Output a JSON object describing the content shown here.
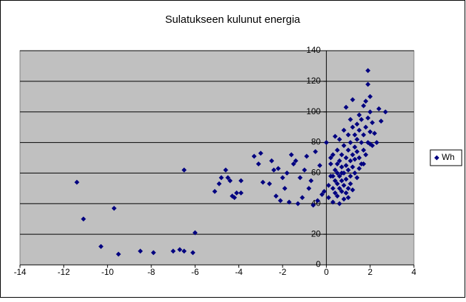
{
  "chart_data": {
    "type": "scatter",
    "title": "Sulatukseen kulunut energia",
    "series": [
      {
        "name": "Wh",
        "color": "#000080",
        "x": [
          -11.4,
          -11.1,
          -9.7,
          -10.3,
          -9.5,
          -8.5,
          -7.9,
          -7,
          -6.7,
          -6.5,
          -6.1,
          -6,
          -6.5,
          -5.1,
          -4.9,
          -4.8,
          -4.6,
          -4.5,
          -4.4,
          -4.3,
          -4.2,
          -4.1,
          -3.9,
          -3.9,
          -3.3,
          -3.1,
          -3,
          -2.9,
          -2.6,
          -2.5,
          -2.4,
          -2.3,
          -2.2,
          -2.1,
          -2,
          -1.9,
          -1.8,
          -1.7,
          -1.6,
          -1.5,
          -1.4,
          -1.3,
          -1.2,
          -1.1,
          -1,
          -0.9,
          -0.8,
          -0.7,
          -0.6,
          -0.5,
          -0.4,
          -0.3,
          -0.2,
          -0.1,
          0,
          0.1,
          0.1,
          0.2,
          0.2,
          0.3,
          0.3,
          0.3,
          0.4,
          0.4,
          0.4,
          0.5,
          0.5,
          0.5,
          0.5,
          0.6,
          0.6,
          0.6,
          0.6,
          0.7,
          0.7,
          0.7,
          0.7,
          0.8,
          0.8,
          0.8,
          0.8,
          0.9,
          0.9,
          0.9,
          0.9,
          1.0,
          1.0,
          1.0,
          1.0,
          1.1,
          1.1,
          1.1,
          1.1,
          1.2,
          1.2,
          1.2,
          1.2,
          1.3,
          1.3,
          1.3,
          1.4,
          1.4,
          1.4,
          1.5,
          1.5,
          1.5,
          1.6,
          1.6,
          1.6,
          1.7,
          1.7,
          1.7,
          1.8,
          1.8,
          1.8,
          1.9,
          1.9,
          1.9,
          1.9,
          2.0,
          2.0,
          2.0,
          2.0,
          2.1,
          2.2,
          2.3,
          2.4,
          2.5,
          2.7,
          1.0,
          0.6,
          0.8,
          1.3,
          1.5,
          0.2,
          0.4,
          1.7,
          2.1,
          0.9,
          1.1,
          0.3,
          0.7,
          1.2,
          1.4,
          0.5
        ],
        "values": [
          54,
          30,
          37,
          12,
          7,
          9,
          8,
          9,
          10,
          9,
          8,
          21,
          62,
          48,
          53,
          57,
          62,
          57,
          55,
          45,
          44,
          47,
          55,
          47,
          71,
          66,
          73,
          54,
          53,
          68,
          62,
          45,
          63,
          42,
          57,
          50,
          60,
          41,
          72,
          66,
          68,
          40,
          57,
          44,
          62,
          71,
          50,
          55,
          39,
          74,
          42,
          65,
          46,
          48,
          80,
          52,
          44,
          58,
          66,
          50,
          72,
          41,
          55,
          62,
          47,
          53,
          75,
          60,
          45,
          58,
          68,
          50,
          82,
          64,
          55,
          72,
          48,
          78,
          60,
          52,
          88,
          70,
          65,
          56,
          103,
          75,
          62,
          85,
          50,
          68,
          80,
          95,
          58,
          72,
          90,
          64,
          108,
          77,
          85,
          69,
          92,
          74,
          82,
          88,
          98,
          70,
          80,
          95,
          66,
          85,
          104,
          75,
          90,
          107,
          72,
          127,
          118,
          96,
          80,
          110,
          100,
          87,
          79,
          93,
          86,
          80,
          102,
          94,
          100,
          44,
          40,
          43,
          60,
          63,
          70,
          84,
          66,
          78,
          47,
          53,
          58,
          60,
          49,
          57,
          66
        ]
      }
    ],
    "xlim": [
      -14,
      4
    ],
    "xticks": [
      -14,
      -12,
      -10,
      -8,
      -6,
      -4,
      -2,
      0,
      2,
      4
    ],
    "ylim": [
      0,
      140
    ],
    "yticks": [
      0,
      20,
      40,
      60,
      80,
      100,
      120,
      140
    ],
    "grid": true,
    "legend": "right",
    "plot_background": "#c0c0c0"
  }
}
